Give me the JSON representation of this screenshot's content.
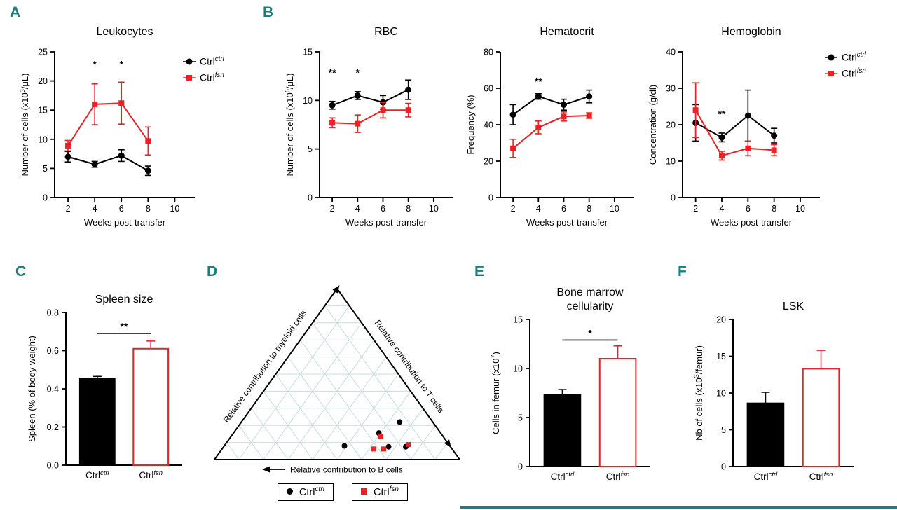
{
  "colors": {
    "black": "#000000",
    "red": "#ed2024",
    "panel_letter": "#17807e",
    "ternary_grid": "#c9dcdc",
    "divider": "#17807e",
    "background": "#ffffff"
  },
  "panel_letters": {
    "A": "A",
    "B": "B",
    "C": "C",
    "D": "D",
    "E": "E",
    "F": "F"
  },
  "chart_data": [
    {
      "id": "leukocytes",
      "panel": "A",
      "type": "line",
      "title": [
        "Leukocytes"
      ],
      "xlabel": "Weeks post-transfer",
      "ylabel": "Number of cells (x10^{3}/μL)",
      "x": [
        2,
        4,
        6,
        8
      ],
      "xlim": [
        1,
        11.5
      ],
      "xticks": [
        2,
        4,
        6,
        8,
        10
      ],
      "xtick_labels": [
        "2",
        "4",
        "6",
        "8",
        "10"
      ],
      "ylim": [
        0,
        25
      ],
      "yticks": [
        0,
        5,
        10,
        15,
        20,
        25
      ],
      "ytick_labels": [
        "0",
        "5",
        "10",
        "15",
        "20",
        "25"
      ],
      "series": [
        {
          "name": "Ctrl^{ctrl}",
          "marker": "circle",
          "color": "#000000",
          "values": [
            7.0,
            5.7,
            7.2,
            4.6
          ],
          "errors": [
            0.9,
            0.5,
            1.0,
            0.8
          ]
        },
        {
          "name": "Ctrl^{fsn}",
          "marker": "square",
          "color": "#ed2024",
          "values": [
            8.9,
            16.0,
            16.2,
            9.7
          ],
          "errors": [
            0.9,
            3.5,
            3.6,
            2.4
          ]
        }
      ],
      "annotations": [
        {
          "x": 4,
          "y": 22.3,
          "text": "*"
        },
        {
          "x": 6,
          "y": 22.3,
          "text": "*"
        }
      ],
      "legend": true
    },
    {
      "id": "rbc",
      "panel": "B",
      "type": "line",
      "title": [
        "RBC"
      ],
      "xlabel": "Weeks post-transfer",
      "ylabel": "Number of cells (x10^{6}/μL)",
      "x": [
        2,
        4,
        6,
        8
      ],
      "xlim": [
        1,
        11.5
      ],
      "xticks": [
        2,
        4,
        6,
        8,
        10
      ],
      "xtick_labels": [
        "2",
        "4",
        "6",
        "8",
        "10"
      ],
      "ylim": [
        0,
        15
      ],
      "yticks": [
        0,
        5,
        10,
        15
      ],
      "ytick_labels": [
        "0",
        "5",
        "10",
        "15"
      ],
      "series": [
        {
          "name": "Ctrl^{ctrl}",
          "marker": "circle",
          "color": "#000000",
          "values": [
            9.5,
            10.5,
            9.8,
            11.1
          ],
          "errors": [
            0.4,
            0.4,
            0.7,
            1.0
          ]
        },
        {
          "name": "Ctrl^{fsn}",
          "marker": "square",
          "color": "#ed2024",
          "values": [
            7.7,
            7.6,
            9.0,
            9.0
          ],
          "errors": [
            0.5,
            0.9,
            0.8,
            0.7
          ]
        }
      ],
      "annotations": [
        {
          "x": 2,
          "y": 12.5,
          "text": "**"
        },
        {
          "x": 4,
          "y": 12.5,
          "text": "*"
        }
      ],
      "legend": false
    },
    {
      "id": "hematocrit",
      "panel": "B",
      "type": "line",
      "title": [
        "Hematocrit"
      ],
      "xlabel": "Weeks post-transfer",
      "ylabel": "Frequency (%)",
      "x": [
        2,
        4,
        6,
        8
      ],
      "xlim": [
        1,
        11.5
      ],
      "xticks": [
        2,
        4,
        6,
        8,
        10
      ],
      "xtick_labels": [
        "2",
        "4",
        "6",
        "8",
        "10"
      ],
      "ylim": [
        0,
        80
      ],
      "yticks": [
        0,
        20,
        40,
        60,
        80
      ],
      "ytick_labels": [
        "0",
        "20",
        "40",
        "60",
        "80"
      ],
      "series": [
        {
          "name": "Ctrl^{ctrl}",
          "marker": "circle",
          "color": "#000000",
          "values": [
            45.5,
            55.5,
            51.0,
            55.5
          ],
          "errors": [
            5.5,
            1.5,
            3.0,
            3.5
          ]
        },
        {
          "name": "Ctrl^{fsn}",
          "marker": "square",
          "color": "#ed2024",
          "values": [
            27.0,
            38.5,
            44.5,
            45.0
          ],
          "errors": [
            5.0,
            3.5,
            2.5,
            1.5
          ]
        }
      ],
      "annotations": [
        {
          "x": 4,
          "y": 62,
          "text": "**"
        }
      ],
      "legend": false
    },
    {
      "id": "hemoglobin",
      "panel": "B",
      "type": "line",
      "title": [
        "Hemoglobin"
      ],
      "xlabel": "Weeks post-transfer",
      "ylabel": "Concentration (g/dl)",
      "x": [
        2,
        4,
        6,
        8
      ],
      "xlim": [
        1,
        11.5
      ],
      "xticks": [
        2,
        4,
        6,
        8,
        10
      ],
      "xtick_labels": [
        "2",
        "4",
        "6",
        "8",
        "10"
      ],
      "ylim": [
        0,
        40
      ],
      "yticks": [
        0,
        10,
        20,
        30,
        40
      ],
      "ytick_labels": [
        "0",
        "10",
        "20",
        "30",
        "40"
      ],
      "series": [
        {
          "name": "Ctrl^{ctrl}",
          "marker": "circle",
          "color": "#000000",
          "values": [
            20.5,
            16.5,
            22.5,
            17.0
          ],
          "errors": [
            5.0,
            1.2,
            7.0,
            2.0
          ]
        },
        {
          "name": "Ctrl^{fsn}",
          "marker": "square",
          "color": "#ed2024",
          "values": [
            24.0,
            11.5,
            13.5,
            13.0
          ],
          "errors": [
            7.5,
            1.2,
            2.0,
            1.5
          ]
        }
      ],
      "annotations": [
        {
          "x": 4,
          "y": 22,
          "text": "**"
        }
      ],
      "legend": true
    },
    {
      "id": "spleen",
      "panel": "C",
      "type": "bar",
      "title": [
        "Spleen size"
      ],
      "ylabel": "Spleen (% of body weight)",
      "ylim": [
        0,
        0.8
      ],
      "yticks": [
        0,
        0.2,
        0.4,
        0.6,
        0.8
      ],
      "ytick_labels": [
        "0.0",
        "0.2",
        "0.4",
        "0.6",
        "0.8"
      ],
      "categories": [
        "Ctrl^{ctrl}",
        "Ctrl^{fsn}"
      ],
      "values": [
        0.455,
        0.61
      ],
      "errors": [
        0.01,
        0.04
      ],
      "bar_styles": [
        {
          "fill": "#000000",
          "stroke": "#000000"
        },
        {
          "fill": "#ffffff",
          "stroke": "#ed2024"
        }
      ],
      "significance": {
        "text": "**",
        "y": 0.69
      }
    },
    {
      "id": "bonemarrow",
      "panel": "E",
      "type": "bar",
      "title": [
        "Bone marrow",
        "cellularity"
      ],
      "ylabel": "Cells in femur (x10^{7})",
      "ylim": [
        0,
        15
      ],
      "yticks": [
        0,
        5,
        10,
        15
      ],
      "ytick_labels": [
        "0",
        "5",
        "10",
        "15"
      ],
      "categories": [
        "Ctrl^{ctrl}",
        "Ctrl^{fsn}"
      ],
      "values": [
        7.3,
        11.0
      ],
      "errors": [
        0.55,
        1.3
      ],
      "bar_styles": [
        {
          "fill": "#000000",
          "stroke": "#000000"
        },
        {
          "fill": "#ffffff",
          "stroke": "#ed2024"
        }
      ],
      "significance": {
        "text": "*",
        "y": 12.9
      }
    },
    {
      "id": "lsk",
      "panel": "F",
      "type": "bar",
      "title": [
        "LSK"
      ],
      "ylabel": "Nb of cells (x10^{3}/femur)",
      "ylim": [
        0,
        20
      ],
      "yticks": [
        0,
        5,
        10,
        15,
        20
      ],
      "ytick_labels": [
        "0",
        "5",
        "10",
        "15",
        "20"
      ],
      "categories": [
        "Ctrl^{ctrl}",
        "Ctrl^{fsn}"
      ],
      "values": [
        8.6,
        13.3
      ],
      "errors": [
        1.5,
        2.5
      ],
      "bar_styles": [
        {
          "fill": "#000000",
          "stroke": "#000000"
        },
        {
          "fill": "#ffffff",
          "stroke": "#ed2024"
        }
      ],
      "significance": null
    },
    {
      "id": "lineage",
      "panel": "D",
      "type": "ternary",
      "axis_labels": {
        "left": "Relative contribution to myeloid cells",
        "right": "Relative contribution to T cells",
        "bottom": "Relative contribution to B cells"
      },
      "grid_divisions": 10,
      "series": {
        "ctrl": {
          "label": "Ctrl^{ctrl}",
          "marker": "circle",
          "color": "#000000"
        },
        "fsn": {
          "label": "Ctrl^{fsn}",
          "marker": "square",
          "color": "#ed2024"
        }
      },
      "legend_order": [
        "ctrl",
        "fsn"
      ],
      "points": [
        {
          "series": "ctrl",
          "fx": 0.53,
          "fy": 0.08
        },
        {
          "series": "ctrl",
          "fx": 0.67,
          "fy": 0.155
        },
        {
          "series": "ctrl",
          "fx": 0.755,
          "fy": 0.22
        },
        {
          "series": "ctrl",
          "fx": 0.71,
          "fy": 0.075
        },
        {
          "series": "ctrl",
          "fx": 0.78,
          "fy": 0.075
        },
        {
          "series": "fsn",
          "fx": 0.65,
          "fy": 0.062
        },
        {
          "series": "fsn",
          "fx": 0.69,
          "fy": 0.062
        },
        {
          "series": "fsn",
          "fx": 0.678,
          "fy": 0.135
        },
        {
          "series": "fsn",
          "fx": 0.79,
          "fy": 0.088
        }
      ]
    }
  ]
}
